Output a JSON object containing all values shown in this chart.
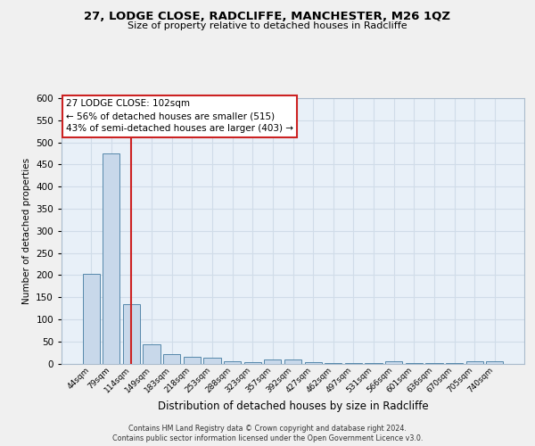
{
  "title": "27, LODGE CLOSE, RADCLIFFE, MANCHESTER, M26 1QZ",
  "subtitle": "Size of property relative to detached houses in Radcliffe",
  "xlabel": "Distribution of detached houses by size in Radcliffe",
  "ylabel": "Number of detached properties",
  "footer1": "Contains HM Land Registry data © Crown copyright and database right 2024.",
  "footer2": "Contains public sector information licensed under the Open Government Licence v3.0.",
  "categories": [
    "44sqm",
    "79sqm",
    "114sqm",
    "149sqm",
    "183sqm",
    "218sqm",
    "253sqm",
    "288sqm",
    "323sqm",
    "357sqm",
    "392sqm",
    "427sqm",
    "462sqm",
    "497sqm",
    "531sqm",
    "566sqm",
    "601sqm",
    "636sqm",
    "670sqm",
    "705sqm",
    "740sqm"
  ],
  "values": [
    203,
    475,
    135,
    43,
    22,
    15,
    13,
    5,
    3,
    10,
    10,
    4,
    2,
    2,
    2,
    5,
    2,
    2,
    2,
    5,
    5
  ],
  "bar_color": "#c8d8ea",
  "bar_edge_color": "#5588aa",
  "bg_color": "#e8f0f8",
  "grid_color": "#d0dce8",
  "fig_bg_color": "#f0f0f0",
  "annotation_line1": "27 LODGE CLOSE: 102sqm",
  "annotation_line2": "← 56% of detached houses are smaller (515)",
  "annotation_line3": "43% of semi-detached houses are larger (403) →",
  "redline_x": 2.0,
  "ylim_max": 600,
  "ytick_step": 50
}
